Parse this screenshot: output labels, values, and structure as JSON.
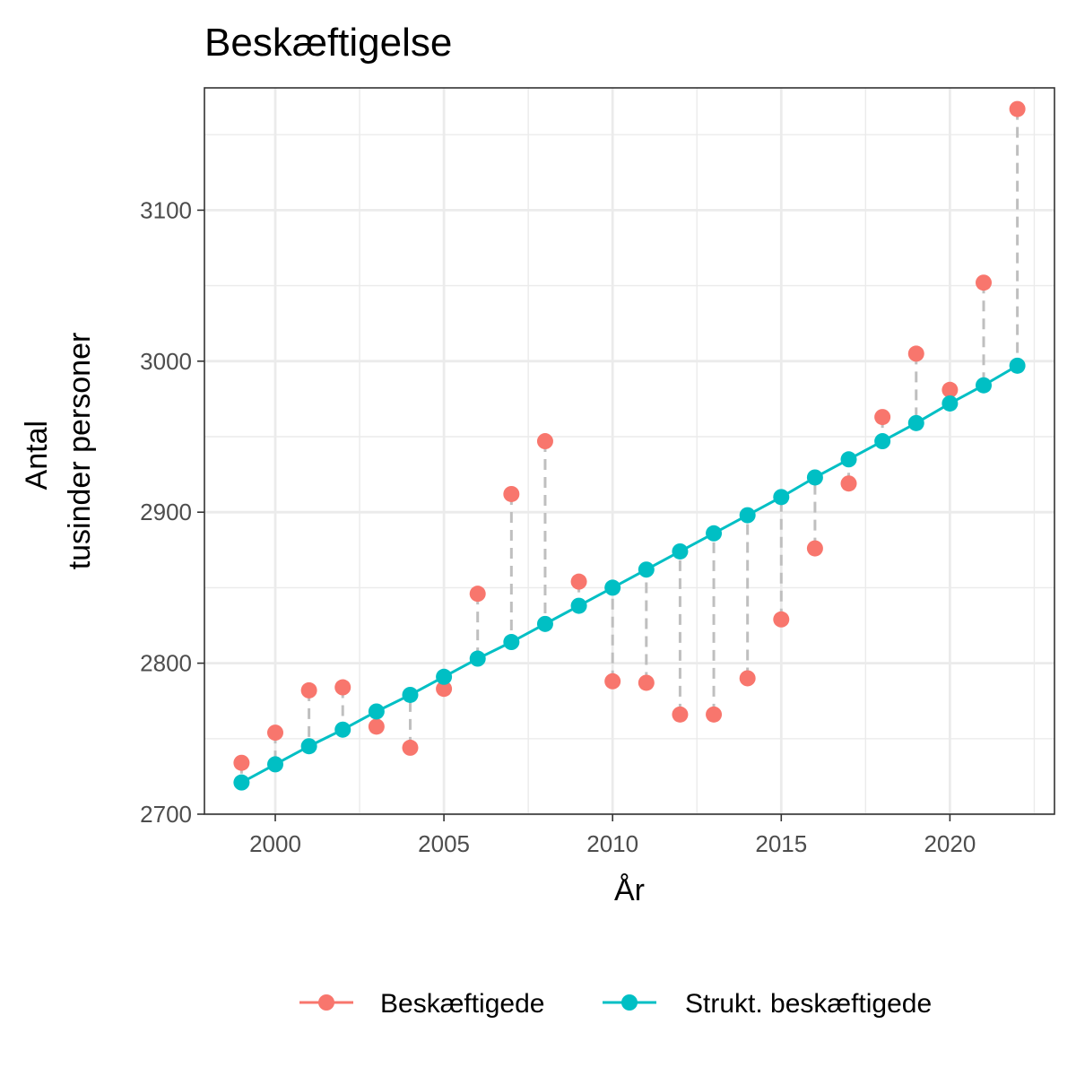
{
  "chart_data": {
    "type": "line",
    "title": "Beskæftigelse",
    "xlabel": "År",
    "ylabel_lines": [
      "Antal",
      "tusinder personer"
    ],
    "xlim": [
      1997.9,
      2023.1
    ],
    "ylim": [
      2700,
      3181
    ],
    "x_ticks": [
      2000,
      2005,
      2010,
      2015,
      2020
    ],
    "y_ticks": [
      2700,
      2800,
      2900,
      3000,
      3100
    ],
    "x": [
      1999,
      2000,
      2001,
      2002,
      2003,
      2004,
      2005,
      2006,
      2007,
      2008,
      2009,
      2010,
      2011,
      2012,
      2013,
      2014,
      2015,
      2016,
      2017,
      2018,
      2019,
      2020,
      2021,
      2022
    ],
    "grid": true,
    "legend_position": "bottom",
    "gap_line_color": "#bfbfbf",
    "series": [
      {
        "name": "Beskæftigede",
        "color": "#F8766D",
        "mode": "points",
        "values": [
          2734,
          2754,
          2782,
          2784,
          2758,
          2744,
          2783,
          2846,
          2912,
          2947,
          2854,
          2788,
          2787,
          2766,
          2766,
          2790,
          2829,
          2876,
          2919,
          2963,
          3005,
          2981,
          3052,
          3167
        ]
      },
      {
        "name": "Strukt. beskæftigede",
        "color": "#00BFC4",
        "mode": "line+points",
        "values": [
          2721,
          2733,
          2745,
          2756,
          2768,
          2779,
          2791,
          2803,
          2814,
          2826,
          2838,
          2850,
          2862,
          2874,
          2886,
          2898,
          2910,
          2923,
          2935,
          2947,
          2959,
          2972,
          2984,
          2997
        ]
      }
    ]
  }
}
